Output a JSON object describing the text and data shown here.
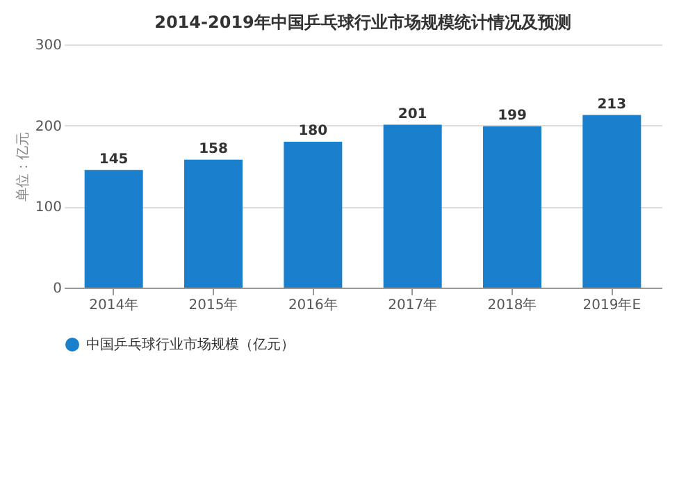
{
  "chart_data": {
    "type": "bar",
    "title": "2014-2019年中国乒乓球行业市场规模统计情况及预测",
    "ylabel": "单位：亿元",
    "categories": [
      "2014年",
      "2015年",
      "2016年",
      "2017年",
      "2018年",
      "2019年E"
    ],
    "series": [
      {
        "name": "中国乒乓球行业市场规模（亿元）",
        "color": "#1a7fcc",
        "values": [
          145,
          158,
          180,
          201,
          199,
          213
        ]
      }
    ],
    "ylim": [
      0,
      300
    ],
    "yticks": [
      0,
      100,
      200,
      300
    ],
    "grid": "y",
    "legend": "bottom",
    "data_labels": true
  }
}
